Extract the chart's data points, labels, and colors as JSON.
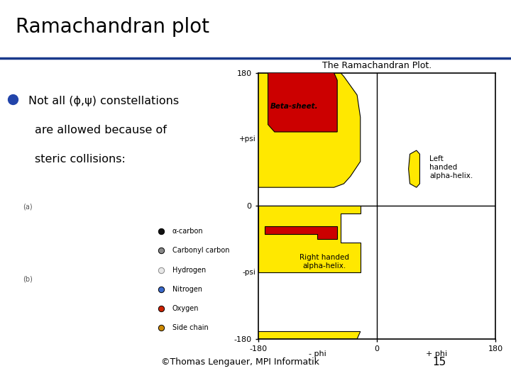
{
  "title": "Ramachandran plot",
  "slide_bg": "#ffffff",
  "title_color": "#000000",
  "title_fontsize": 20,
  "blue_line_color": "#1a3a8c",
  "footer_text": "©Thomas Lengauer, MPI Informatik",
  "footer_number": "15",
  "bullet_text_line1": "Not all (ϕ,ψ) constellations",
  "bullet_text_line2": "are allowed because of",
  "bullet_text_line3": "steric collisions:",
  "rama_title": "The Ramachandran Plot.",
  "yellow": "#FFE800",
  "red": "#CC0000",
  "black": "#000000",
  "white": "#ffffff",
  "beta_sheet_label": "Beta-sheet.",
  "right_helix_label": "Right handed\nalpha-helix.",
  "left_helix_label": "Left\nhanded\nalpha-helix.",
  "legend_items": [
    [
      "α-carbon",
      "#111111"
    ],
    [
      "Carbonyl carbon",
      "#888888"
    ],
    [
      "Hydrogen",
      "#e8e8e8"
    ],
    [
      "Nitrogen",
      "#3a6acc"
    ],
    [
      "Oxygen",
      "#cc2200"
    ],
    [
      "Side chain",
      "#cc8800"
    ]
  ]
}
